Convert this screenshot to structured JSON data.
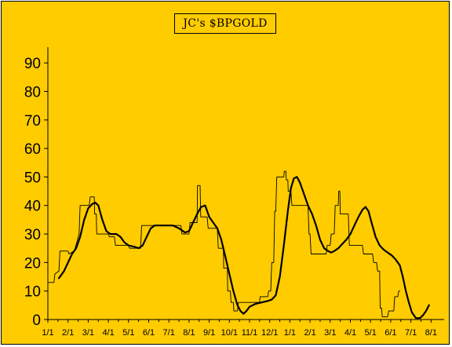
{
  "chart_data": {
    "type": "line",
    "title": "JC's $BPGOLD",
    "xlabel": "",
    "ylabel": "",
    "ylim": [
      0,
      95
    ],
    "yticks": [
      0,
      10,
      20,
      30,
      40,
      50,
      60,
      70,
      80,
      90
    ],
    "x_tick_labels": [
      "1/1",
      "2/1",
      "3/1",
      "4/1",
      "5/1",
      "6/1",
      "7/1",
      "8/1",
      "9/1",
      "10/1",
      "11/1",
      "12/1",
      "1/1",
      "2/1",
      "3/1",
      "4/1",
      "5/1",
      "6/1",
      "7/1",
      "8/1"
    ],
    "grid": false,
    "legend": "none",
    "colors": {
      "background": "#ffcc00",
      "axis": "#000000",
      "series": "#000000"
    },
    "series": [
      {
        "style": "thin-step",
        "points": [
          [
            0.0,
            13
          ],
          [
            0.3,
            13
          ],
          [
            0.35,
            16
          ],
          [
            0.55,
            17
          ],
          [
            0.6,
            24
          ],
          [
            1.0,
            24
          ],
          [
            1.05,
            23
          ],
          [
            1.3,
            24
          ],
          [
            1.35,
            25
          ],
          [
            1.55,
            30
          ],
          [
            1.6,
            40
          ],
          [
            2.05,
            40
          ],
          [
            2.1,
            43
          ],
          [
            2.3,
            43
          ],
          [
            2.32,
            37
          ],
          [
            2.4,
            37
          ],
          [
            2.42,
            30
          ],
          [
            3.0,
            30
          ],
          [
            3.05,
            29
          ],
          [
            3.3,
            29
          ],
          [
            3.35,
            26
          ],
          [
            4.0,
            26
          ],
          [
            4.05,
            25
          ],
          [
            4.6,
            25
          ],
          [
            4.65,
            33
          ],
          [
            6.6,
            33
          ],
          [
            6.65,
            30
          ],
          [
            7.0,
            30
          ],
          [
            7.05,
            34
          ],
          [
            7.4,
            34
          ],
          [
            7.42,
            47
          ],
          [
            7.55,
            47
          ],
          [
            7.58,
            36
          ],
          [
            7.9,
            36
          ],
          [
            7.95,
            32
          ],
          [
            8.4,
            32
          ],
          [
            8.45,
            25
          ],
          [
            8.7,
            25
          ],
          [
            8.72,
            18
          ],
          [
            8.9,
            18
          ],
          [
            8.92,
            10
          ],
          [
            9.05,
            10
          ],
          [
            9.08,
            6
          ],
          [
            9.2,
            6
          ],
          [
            9.22,
            3
          ],
          [
            9.4,
            3
          ],
          [
            9.45,
            6
          ],
          [
            10.0,
            6
          ],
          [
            10.5,
            6
          ],
          [
            10.52,
            8
          ],
          [
            10.9,
            8
          ],
          [
            10.95,
            10
          ],
          [
            11.05,
            10
          ],
          [
            11.1,
            20
          ],
          [
            11.2,
            20
          ],
          [
            11.25,
            38
          ],
          [
            11.3,
            38
          ],
          [
            11.35,
            50
          ],
          [
            11.7,
            50
          ],
          [
            11.72,
            52
          ],
          [
            11.8,
            52
          ],
          [
            11.82,
            49
          ],
          [
            11.9,
            49
          ],
          [
            11.92,
            45
          ],
          [
            12.05,
            45
          ],
          [
            12.1,
            40
          ],
          [
            12.9,
            40
          ],
          [
            12.95,
            30
          ],
          [
            13.0,
            30
          ],
          [
            13.05,
            23
          ],
          [
            13.8,
            23
          ],
          [
            13.85,
            26
          ],
          [
            14.0,
            26
          ],
          [
            14.05,
            30
          ],
          [
            14.2,
            30
          ],
          [
            14.25,
            40
          ],
          [
            14.4,
            40
          ],
          [
            14.42,
            45
          ],
          [
            14.48,
            45
          ],
          [
            14.5,
            37
          ],
          [
            14.9,
            37
          ],
          [
            14.95,
            26
          ],
          [
            15.6,
            26
          ],
          [
            15.65,
            23
          ],
          [
            16.1,
            23
          ],
          [
            16.15,
            20
          ],
          [
            16.3,
            20
          ],
          [
            16.35,
            17
          ],
          [
            16.45,
            17
          ],
          [
            16.48,
            4
          ],
          [
            16.55,
            4
          ],
          [
            16.58,
            1
          ],
          [
            16.85,
            1
          ],
          [
            16.9,
            3
          ],
          [
            17.15,
            3
          ],
          [
            17.2,
            8
          ],
          [
            17.35,
            8
          ],
          [
            17.4,
            10
          ],
          [
            17.45,
            10
          ]
        ]
      },
      {
        "style": "thick-smoothed",
        "points": [
          [
            0.55,
            14.5
          ],
          [
            0.8,
            17
          ],
          [
            1.0,
            20
          ],
          [
            1.2,
            23
          ],
          [
            1.4,
            25
          ],
          [
            1.6,
            29
          ],
          [
            1.8,
            35
          ],
          [
            2.0,
            39
          ],
          [
            2.2,
            40.5
          ],
          [
            2.35,
            41
          ],
          [
            2.5,
            40
          ],
          [
            2.7,
            35
          ],
          [
            2.9,
            31
          ],
          [
            3.1,
            30
          ],
          [
            3.4,
            30
          ],
          [
            3.6,
            29
          ],
          [
            3.8,
            27
          ],
          [
            4.0,
            26
          ],
          [
            4.3,
            25.5
          ],
          [
            4.5,
            25
          ],
          [
            4.7,
            26
          ],
          [
            4.9,
            29
          ],
          [
            5.1,
            32
          ],
          [
            5.3,
            33
          ],
          [
            5.6,
            33
          ],
          [
            5.9,
            33
          ],
          [
            6.2,
            33
          ],
          [
            6.5,
            32
          ],
          [
            6.8,
            30.5
          ],
          [
            7.0,
            31
          ],
          [
            7.2,
            34
          ],
          [
            7.4,
            37
          ],
          [
            7.6,
            39.5
          ],
          [
            7.8,
            40
          ],
          [
            8.0,
            36
          ],
          [
            8.2,
            34
          ],
          [
            8.4,
            32
          ],
          [
            8.6,
            28
          ],
          [
            8.8,
            22
          ],
          [
            9.0,
            16
          ],
          [
            9.2,
            10
          ],
          [
            9.4,
            5
          ],
          [
            9.55,
            3
          ],
          [
            9.7,
            2
          ],
          [
            9.85,
            3
          ],
          [
            10.0,
            4.5
          ],
          [
            10.3,
            5.5
          ],
          [
            10.6,
            6
          ],
          [
            10.9,
            6.5
          ],
          [
            11.1,
            7
          ],
          [
            11.3,
            8.5
          ],
          [
            11.5,
            15
          ],
          [
            11.7,
            26
          ],
          [
            11.9,
            38
          ],
          [
            12.05,
            46
          ],
          [
            12.2,
            49.5
          ],
          [
            12.35,
            50
          ],
          [
            12.5,
            48
          ],
          [
            12.7,
            44
          ],
          [
            12.9,
            40
          ],
          [
            13.1,
            37
          ],
          [
            13.3,
            33
          ],
          [
            13.5,
            28
          ],
          [
            13.7,
            25
          ],
          [
            13.9,
            24
          ],
          [
            14.05,
            23.5
          ],
          [
            14.2,
            24
          ],
          [
            14.4,
            25
          ],
          [
            14.6,
            26.5
          ],
          [
            14.8,
            28
          ],
          [
            15.0,
            30
          ],
          [
            15.2,
            33
          ],
          [
            15.4,
            36
          ],
          [
            15.6,
            38.5
          ],
          [
            15.75,
            39.5
          ],
          [
            15.9,
            38
          ],
          [
            16.05,
            34
          ],
          [
            16.25,
            29
          ],
          [
            16.45,
            26
          ],
          [
            16.65,
            24.5
          ],
          [
            16.85,
            23.5
          ],
          [
            17.05,
            22.5
          ],
          [
            17.25,
            21
          ],
          [
            17.45,
            19
          ],
          [
            17.6,
            15
          ],
          [
            17.75,
            10
          ],
          [
            17.9,
            6
          ],
          [
            18.05,
            2.5
          ],
          [
            18.25,
            0.5
          ],
          [
            18.45,
            0.5
          ],
          [
            18.6,
            1.5
          ],
          [
            18.75,
            3
          ],
          [
            18.9,
            5
          ]
        ]
      }
    ]
  }
}
